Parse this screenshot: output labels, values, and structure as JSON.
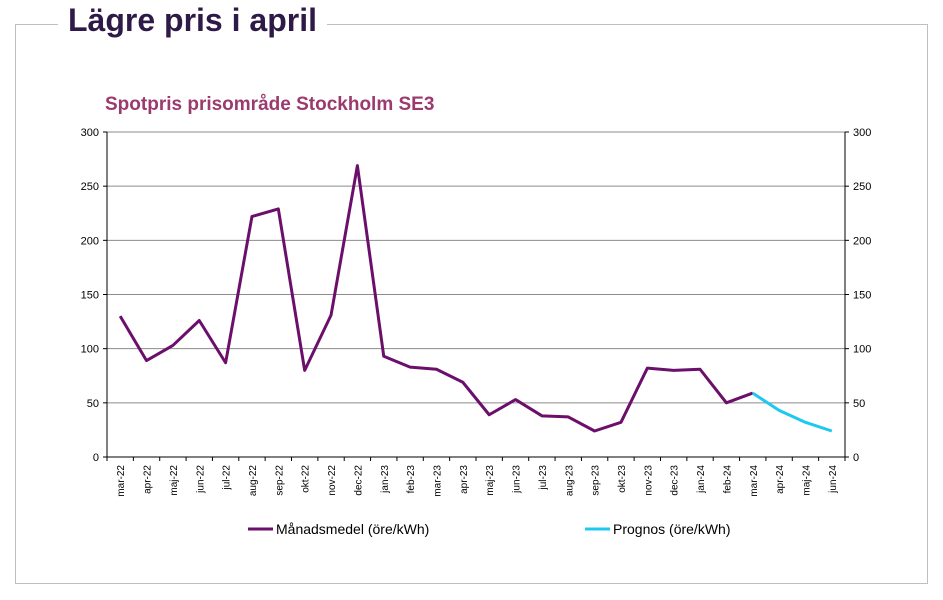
{
  "heading": "Lägre pris i april",
  "chart_data": {
    "type": "line",
    "title": "Spotpris prisområde Stockholm SE3",
    "categories": [
      "mar-22",
      "apr-22",
      "maj-22",
      "jun-22",
      "jul-22",
      "aug-22",
      "sep-22",
      "okt-22",
      "nov-22",
      "dec-22",
      "jan-23",
      "feb-23",
      "mar-23",
      "apr-23",
      "maj-23",
      "jun-23",
      "jul-23",
      "aug-23",
      "sep-23",
      "okt-23",
      "nov-23",
      "dec-23",
      "jan-24",
      "feb-24",
      "mar-24",
      "apr-24",
      "maj-24",
      "jun-24"
    ],
    "series": [
      {
        "name": "Månadsmedel (öre/kWh)",
        "color": "#6b0f6b",
        "values": [
          130,
          89,
          103,
          126,
          87,
          222,
          229,
          80,
          131,
          269,
          93,
          83,
          81,
          69,
          39,
          53,
          38,
          37,
          24,
          32,
          82,
          80,
          81,
          50,
          59,
          null,
          null,
          null
        ]
      },
      {
        "name": "Prognos (öre/kWh)",
        "color": "#1ec8f0",
        "values": [
          null,
          null,
          null,
          null,
          null,
          null,
          null,
          null,
          null,
          null,
          null,
          null,
          null,
          null,
          null,
          null,
          null,
          null,
          null,
          null,
          null,
          null,
          null,
          null,
          59,
          43,
          32,
          24
        ]
      }
    ],
    "ylim": [
      0,
      300
    ],
    "yticks": [
      0,
      50,
      100,
      150,
      200,
      250,
      300
    ],
    "secondary_y_axis": true,
    "grid": true,
    "legend": "bottom"
  }
}
